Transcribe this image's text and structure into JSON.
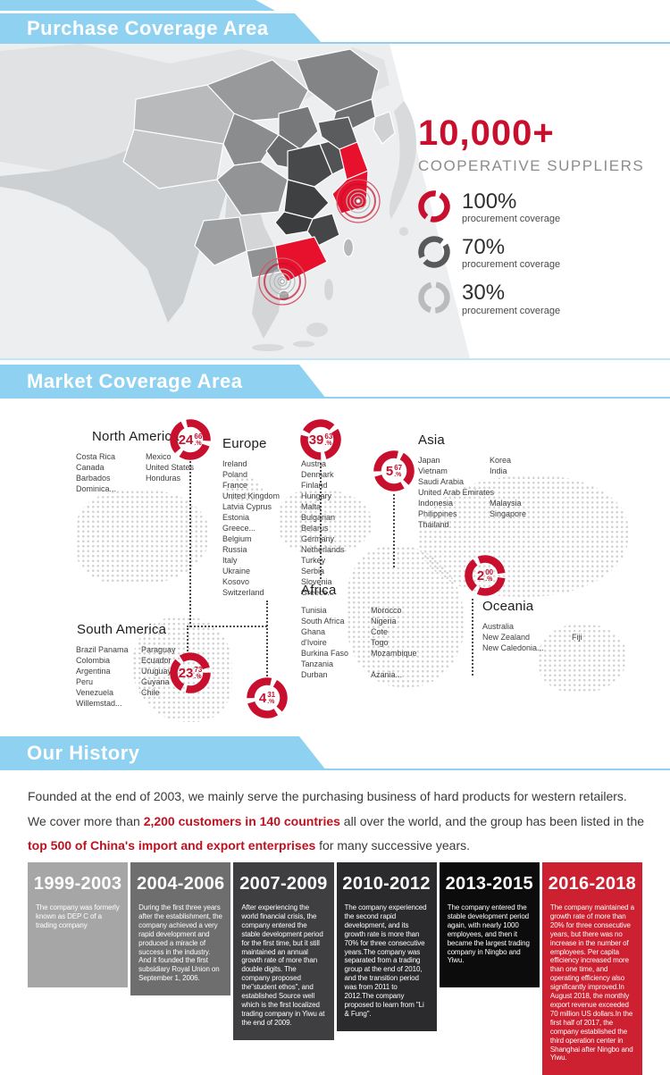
{
  "colors": {
    "banner_blue": "#8ed1f1",
    "accent_red": "#c8102e",
    "map_red": "#e8112d"
  },
  "banners": {
    "purchase": "Purchase Coverage Area",
    "market": "Market Coverage Area",
    "history": "Our History"
  },
  "suppliers": {
    "count": "10,000+",
    "label": "COOPERATIVE SUPPLIERS",
    "coverage": [
      {
        "percent": "100%",
        "label": "procurement coverage",
        "color": "#c8102e"
      },
      {
        "percent": "70%",
        "label": "procurement coverage",
        "color": "#58595b"
      },
      {
        "percent": "30%",
        "label": "procurement coverage",
        "color": "#b9bbbd"
      }
    ]
  },
  "market": {
    "regions": [
      {
        "name": "North America",
        "share_int": "24",
        "share_frac": "66",
        "share_sfx": ".%",
        "col1": [
          "Costa Rica",
          "Canada",
          "Barbados",
          "Dominica..."
        ],
        "col2": [
          "Mexico",
          "United States",
          "Honduras"
        ]
      },
      {
        "name": "Europe",
        "share_int": "39",
        "share_frac": "63",
        "share_sfx": ".%",
        "col1": [
          "Ireland",
          "Poland",
          "France",
          "United Kingdom",
          "Latvia Cyprus",
          "Estonia",
          "Greece...",
          "Belgium",
          "Russia",
          "Italy",
          "Ukraine",
          "Kosovo",
          "Switzerland"
        ],
        "col2": [
          "Austria",
          "Denmark",
          "Finland",
          "Hungary",
          "Malta",
          "Bulgarian",
          "Belarus",
          "Germany",
          "Netherlands",
          "Turkey",
          "Serbia",
          "Slovenia",
          "Greece..."
        ]
      },
      {
        "name": "Asia",
        "share_int": "5",
        "share_frac": "67",
        "share_sfx": ".%",
        "col1": [
          "Japan",
          "Vietnam",
          "Saudi Arabia",
          "United Arab Emirates",
          "Indonesia",
          "Philippines",
          "Thailand"
        ],
        "col2": [
          "Korea",
          "India",
          "",
          "",
          "Malaysia",
          "Singapore"
        ]
      },
      {
        "name": "Oceania",
        "share_int": "2",
        "share_frac": "00",
        "share_sfx": ".%",
        "col1": [
          "Australia",
          "New Zealand",
          "New Caledonia..."
        ],
        "col2": [
          "",
          "Fiji",
          ""
        ]
      },
      {
        "name": "South America",
        "share_int": "23",
        "share_frac": "73",
        "share_sfx": ".%",
        "col1": [
          "Brazil Panama",
          "Colombia",
          "Argentina",
          "Peru",
          "Venezuela",
          "Willemstad..."
        ],
        "col2": [
          "Paraguay",
          "Ecuador",
          "Uruguay",
          "Guyana",
          "Chile"
        ]
      },
      {
        "name": "Africa",
        "share_int": "4",
        "share_frac": "31",
        "share_sfx": ".%",
        "col1": [
          "Tunisia",
          "South Africa",
          "Ghana",
          "d'Ivoire",
          "Burkina Faso",
          "Tanzania",
          "Durban"
        ],
        "col2": [
          "Morocco",
          "Nigeria",
          "Cote",
          "Togo",
          "Mozambique",
          "",
          "Azania..."
        ]
      }
    ]
  },
  "history": {
    "intro": {
      "p1": "Founded at the end of 2003, we mainly serve the purchasing business of hard products for western retailers. We cover more than ",
      "h1": "2,200 customers in 140 countries",
      "p2": " all over the world, and the group has been listed in the ",
      "h2": "top 500 of China's import and export enterprises",
      "p3": " for many successive years."
    },
    "timeline": [
      {
        "years": "1999-2003",
        "bg": "#a6a6a6",
        "text": "The company was formerly known as DEP C of a trading company"
      },
      {
        "years": "2004-2006",
        "bg": "#6e6e6e",
        "text": "During the first three years after the establishment, the company achieved a very rapid development and produced a miracle of success in the industry. And it founded the first subsidiary Royal Union on September 1, 2006."
      },
      {
        "years": "2007-2009",
        "bg": "#3f3f41",
        "text": "After experiencing the world financial crisis, the company entered the stable development period for the first time, but it still maintained an annual growth rate of more than double digits. The company proposed the\"student ethos\", and established Source well which is the first localized trading company in Yiwu at the end of 2009."
      },
      {
        "years": "2010-2012",
        "bg": "#2b2b2d",
        "text": "The company experienced the second rapid development, and its growth rate is more than 70% for three consecutive years.The company was separated from a trading group at the end of 2010, and the transition period was from 2011 to 2012.The company proposed to learn from \"Li & Fung\"."
      },
      {
        "years": "2013-2015",
        "bg": "#0c0c0c",
        "text": "The company entered the stable development period again, with nearly 1000 employees, and then it became the largest trading company in Ningbo and Yiwu."
      },
      {
        "years": "2016-2018",
        "bg": "#cd2030",
        "text": "The company maintained a growth rate of more than 20% for three consecutive years, but there was no increase in the number of employees. Per capita efficiency increased more than one time, and operating efficiency also significantly improved.In August 2018, the monthly export revenue exceeded 70 million US dollars.In the first half of 2017, the company established the third operation center in Shanghai after Ningbo and Yiwu."
      }
    ]
  }
}
